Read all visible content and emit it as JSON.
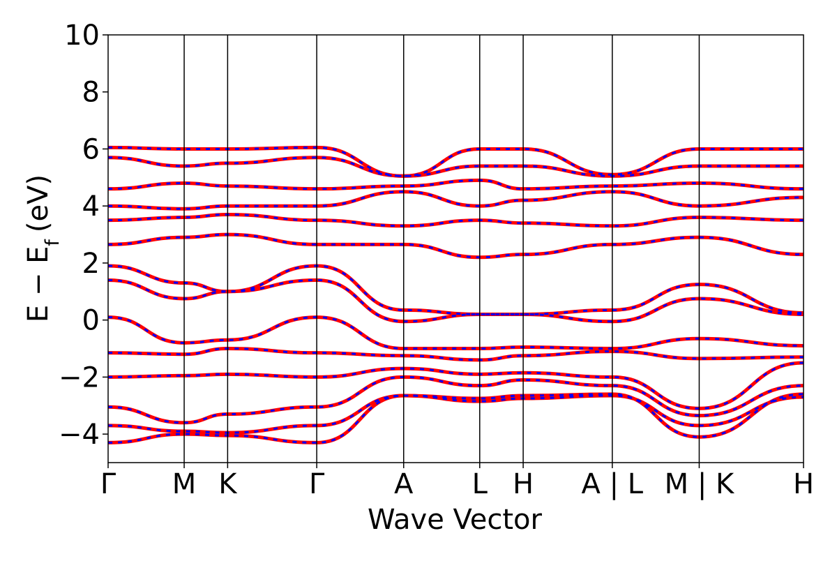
{
  "chart_data": {
    "type": "line",
    "title": "",
    "xlabel": "Wave Vector",
    "ylabel": "E − E",
    "ylabel_sub": "f",
    "ylabel_unit": "(eV)",
    "ylim": [
      -5,
      10
    ],
    "yticks": [
      -4,
      -2,
      0,
      2,
      4,
      6,
      8,
      10
    ],
    "ytick_labels": [
      "−4",
      "−2",
      "0",
      "2",
      "4",
      "6",
      "8",
      "10"
    ],
    "xlim": [
      0,
      8
    ],
    "kpath_ticks": [
      {
        "x": 0,
        "label": "Γ"
      },
      {
        "x": 0.875,
        "label": "M"
      },
      {
        "x": 1.375,
        "label": "K"
      },
      {
        "x": 2.4,
        "label": "Γ"
      },
      {
        "x": 3.4,
        "label": "A"
      },
      {
        "x": 4.275,
        "label": "L"
      },
      {
        "x": 4.775,
        "label": "H"
      },
      {
        "x": 5.8,
        "label": "A | L"
      },
      {
        "x": 6.8,
        "label": "M | K"
      },
      {
        "x": 8.0,
        "label": "H"
      }
    ],
    "grid": false,
    "legend": "none",
    "series": [
      {
        "style": "solid",
        "color": "#ff0000",
        "bands": [
          [
            [
              0,
              -4.3
            ],
            [
              0.875,
              -4.0
            ],
            [
              1.375,
              -4.05
            ],
            [
              2.4,
              -4.3
            ],
            [
              3.4,
              -2.65
            ],
            [
              4.275,
              -2.85
            ],
            [
              4.775,
              -2.75
            ],
            [
              5.8,
              -2.65
            ],
            [
              6.8,
              -3.7
            ],
            [
              8.0,
              -2.7
            ]
          ],
          [
            [
              0,
              -3.7
            ],
            [
              0.875,
              -3.9
            ],
            [
              1.375,
              -3.95
            ],
            [
              2.4,
              -3.7
            ],
            [
              3.4,
              -2.65
            ],
            [
              4.275,
              -2.75
            ],
            [
              4.775,
              -2.65
            ],
            [
              5.8,
              -2.6
            ],
            [
              6.8,
              -4.1
            ],
            [
              8.0,
              -2.6
            ]
          ],
          [
            [
              0,
              -3.05
            ],
            [
              0.875,
              -3.6
            ],
            [
              1.375,
              -3.3
            ],
            [
              2.4,
              -3.05
            ],
            [
              3.4,
              -2.0
            ],
            [
              4.275,
              -2.3
            ],
            [
              4.775,
              -2.1
            ],
            [
              5.8,
              -2.3
            ],
            [
              6.8,
              -3.35
            ],
            [
              8.0,
              -2.3
            ]
          ],
          [
            [
              0,
              -2.0
            ],
            [
              0.875,
              -1.95
            ],
            [
              1.375,
              -1.9
            ],
            [
              2.4,
              -2.0
            ],
            [
              3.4,
              -1.7
            ],
            [
              4.275,
              -1.9
            ],
            [
              4.775,
              -1.85
            ],
            [
              5.8,
              -2.0
            ],
            [
              6.8,
              -3.1
            ],
            [
              8.0,
              -1.5
            ]
          ],
          [
            [
              0,
              -1.15
            ],
            [
              0.875,
              -1.2
            ],
            [
              1.375,
              -1.0
            ],
            [
              2.4,
              -1.15
            ],
            [
              3.4,
              -1.25
            ],
            [
              4.275,
              -1.4
            ],
            [
              4.775,
              -1.25
            ],
            [
              5.8,
              -1.1
            ],
            [
              6.8,
              -1.35
            ],
            [
              8.0,
              -1.3
            ]
          ],
          [
            [
              0,
              0.1
            ],
            [
              0.875,
              -0.8
            ],
            [
              1.375,
              -0.7
            ],
            [
              2.4,
              0.1
            ],
            [
              3.4,
              -1.0
            ],
            [
              4.275,
              -1.0
            ],
            [
              4.775,
              -0.95
            ],
            [
              5.8,
              -1.0
            ],
            [
              6.8,
              -0.65
            ],
            [
              8.0,
              -0.9
            ]
          ],
          [
            [
              0,
              1.4
            ],
            [
              0.875,
              0.75
            ],
            [
              1.375,
              1.0
            ],
            [
              2.4,
              1.4
            ],
            [
              3.4,
              -0.05
            ],
            [
              4.275,
              0.2
            ],
            [
              4.775,
              0.2
            ],
            [
              5.8,
              -0.05
            ],
            [
              6.8,
              0.75
            ],
            [
              8.0,
              0.2
            ]
          ],
          [
            [
              0,
              1.9
            ],
            [
              0.875,
              1.3
            ],
            [
              1.375,
              1.0
            ],
            [
              2.4,
              1.9
            ],
            [
              3.4,
              0.35
            ],
            [
              4.275,
              0.2
            ],
            [
              4.775,
              0.2
            ],
            [
              5.8,
              0.35
            ],
            [
              6.8,
              1.25
            ],
            [
              8.0,
              0.25
            ]
          ],
          [
            [
              0,
              2.65
            ],
            [
              0.875,
              2.9
            ],
            [
              1.375,
              3.0
            ],
            [
              2.4,
              2.65
            ],
            [
              3.4,
              2.65
            ],
            [
              4.275,
              2.2
            ],
            [
              4.775,
              2.3
            ],
            [
              5.8,
              2.65
            ],
            [
              6.8,
              2.9
            ],
            [
              8.0,
              2.3
            ]
          ],
          [
            [
              0,
              3.5
            ],
            [
              0.875,
              3.6
            ],
            [
              1.375,
              3.7
            ],
            [
              2.4,
              3.5
            ],
            [
              3.4,
              3.3
            ],
            [
              4.275,
              3.5
            ],
            [
              4.775,
              3.4
            ],
            [
              5.8,
              3.3
            ],
            [
              6.8,
              3.6
            ],
            [
              8.0,
              3.5
            ]
          ],
          [
            [
              0,
              4.0
            ],
            [
              0.875,
              3.9
            ],
            [
              1.375,
              4.0
            ],
            [
              2.4,
              4.0
            ],
            [
              3.4,
              4.5
            ],
            [
              4.275,
              4.0
            ],
            [
              4.775,
              4.2
            ],
            [
              5.8,
              4.5
            ],
            [
              6.8,
              4.0
            ],
            [
              8.0,
              4.3
            ]
          ],
          [
            [
              0,
              4.6
            ],
            [
              0.875,
              4.8
            ],
            [
              1.375,
              4.7
            ],
            [
              2.4,
              4.6
            ],
            [
              3.4,
              4.7
            ],
            [
              4.275,
              4.9
            ],
            [
              4.775,
              4.6
            ],
            [
              5.8,
              4.7
            ],
            [
              6.8,
              4.8
            ],
            [
              8.0,
              4.6
            ]
          ],
          [
            [
              0,
              5.7
            ],
            [
              0.875,
              5.4
            ],
            [
              1.375,
              5.5
            ],
            [
              2.4,
              5.7
            ],
            [
              3.4,
              5.05
            ],
            [
              4.275,
              5.4
            ],
            [
              4.775,
              5.4
            ],
            [
              5.8,
              5.05
            ],
            [
              6.8,
              5.4
            ],
            [
              8.0,
              5.4
            ]
          ],
          [
            [
              0,
              6.05
            ],
            [
              0.875,
              6.0
            ],
            [
              1.375,
              6.0
            ],
            [
              2.4,
              6.05
            ],
            [
              3.4,
              5.05
            ],
            [
              4.275,
              6.0
            ],
            [
              4.775,
              6.0
            ],
            [
              5.8,
              5.1
            ],
            [
              6.8,
              6.0
            ],
            [
              8.0,
              6.0
            ]
          ]
        ]
      },
      {
        "style": "dashed",
        "color": "#0000ff",
        "same_as": 0
      }
    ]
  }
}
